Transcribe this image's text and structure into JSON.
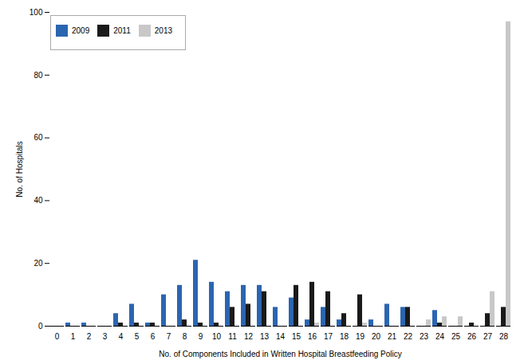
{
  "chart_data": {
    "type": "bar",
    "xlabel": "No. of Components Included in Written Hospital Breastfeeding Policy",
    "ylabel": "No. of Hospitals",
    "categories": [
      0,
      1,
      2,
      3,
      4,
      5,
      6,
      7,
      8,
      9,
      10,
      11,
      12,
      13,
      14,
      15,
      16,
      17,
      18,
      19,
      20,
      21,
      22,
      23,
      24,
      25,
      26,
      27,
      28
    ],
    "series": [
      {
        "name": "2009",
        "color": "#2b65b0",
        "values": [
          0,
          1,
          1,
          0,
          4,
          7,
          1,
          10,
          13,
          21,
          14,
          11,
          13,
          13,
          6,
          9,
          2,
          6,
          2,
          0,
          2,
          7,
          6,
          0,
          5,
          0,
          0,
          0,
          0
        ]
      },
      {
        "name": "2011",
        "color": "#1a1a1a",
        "values": [
          0,
          0,
          0,
          0,
          1,
          1,
          1,
          0,
          2,
          1,
          1,
          6,
          7,
          11,
          0,
          13,
          14,
          11,
          4,
          10,
          0,
          0,
          6,
          0,
          1,
          0,
          1,
          4,
          6
        ]
      },
      {
        "name": "2013",
        "color": "#c8c8c8",
        "values": [
          0,
          0,
          0,
          0,
          0,
          0,
          0,
          0,
          0,
          0,
          0,
          0,
          0,
          0,
          0,
          0,
          1,
          0,
          0,
          1,
          0,
          0,
          0,
          2,
          3,
          3,
          0,
          11,
          97
        ]
      }
    ],
    "ylim": [
      0,
      100
    ],
    "yticks": [
      0,
      20,
      40,
      60,
      80,
      100
    ],
    "grid": false,
    "legend": "upper left"
  }
}
